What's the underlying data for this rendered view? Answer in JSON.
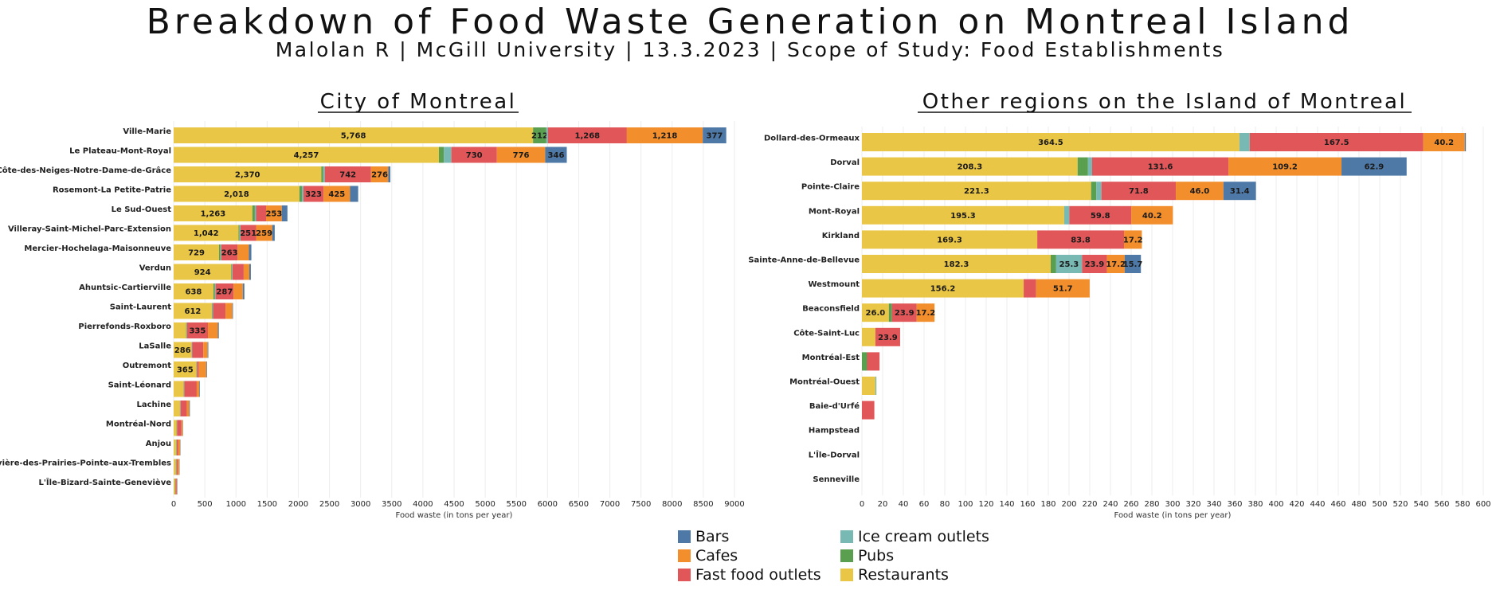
{
  "title": "Breakdown of Food Waste Generation on Montreal Island",
  "subtitle": "Malolan R | McGill University | 13.3.2023 | Scope of Study: Food Establishments",
  "colors": {
    "Restaurants": "#EAC646",
    "Pubs": "#5A9E4F",
    "Ice cream outlets": "#79B9B3",
    "Fast food outlets": "#E15759",
    "Cafes": "#F28E2B",
    "Bars": "#4E79A7"
  },
  "legend": {
    "items": [
      {
        "label": "Bars",
        "color": "#4E79A7"
      },
      {
        "label": "Cafes",
        "color": "#F28E2B"
      },
      {
        "label": "Fast food outlets",
        "color": "#E15759"
      },
      {
        "label": "Ice cream outlets",
        "color": "#79B9B3"
      },
      {
        "label": "Pubs",
        "color": "#5A9E4F"
      },
      {
        "label": "Restaurants",
        "color": "#EAC646"
      }
    ]
  },
  "chart_data": [
    {
      "type": "bar",
      "orientation": "horizontal",
      "stacked": true,
      "title": "City of Montreal",
      "xlabel": "Food waste (in tons per year)",
      "xlim": [
        0,
        9000
      ],
      "xticks": [
        0,
        500,
        1000,
        1500,
        2000,
        2500,
        3000,
        3500,
        4000,
        4500,
        5000,
        5500,
        6000,
        6500,
        7000,
        7500,
        8000,
        8500,
        9000
      ],
      "grid": true,
      "categories": [
        "Ville-Marie",
        "Le Plateau-Mont-Royal",
        "Côte-des-Neiges-Notre-Dame-de-Grâce",
        "Rosemont-La Petite-Patrie",
        "Le Sud-Ouest",
        "Villeray-Saint-Michel-Parc-Extension",
        "Mercier-Hochelaga-Maisonneuve",
        "Verdun",
        "Ahuntsic-Cartierville",
        "Saint-Laurent",
        "Pierrefonds-Roxboro",
        "LaSalle",
        "Outremont",
        "Saint-Léonard",
        "Lachine",
        "Montréal-Nord",
        "Anjou",
        "Rivière-des-Prairies-Pointe-aux-Trembles",
        "L'Île-Bizard-Sainte-Geneviève"
      ],
      "series": [
        {
          "name": "Restaurants",
          "values": [
            5768,
            4257,
            2370,
            2018,
            1263,
            1042,
            729,
            924,
            638,
            612,
            200,
            286,
            365,
            160,
            100,
            45,
            40,
            35,
            20
          ]
        },
        {
          "name": "Pubs",
          "values": [
            212,
            80,
            30,
            40,
            40,
            15,
            20,
            10,
            20,
            10,
            10,
            5,
            5,
            5,
            5,
            5,
            5,
            5,
            5
          ]
        },
        {
          "name": "Ice cream outlets",
          "values": [
            25,
            120,
            25,
            25,
            20,
            15,
            15,
            10,
            15,
            10,
            5,
            5,
            5,
            5,
            5,
            5,
            5,
            5,
            5
          ]
        },
        {
          "name": "Fast food outlets",
          "values": [
            1268,
            730,
            742,
            323,
            160,
            251,
            263,
            180,
            287,
            200,
            335,
            180,
            30,
            200,
            100,
            70,
            25,
            20,
            15
          ]
        },
        {
          "name": "Cafes",
          "values": [
            1218,
            776,
            276,
            425,
            253,
            259,
            180,
            90,
            150,
            110,
            160,
            70,
            120,
            40,
            40,
            20,
            30,
            25,
            10
          ]
        },
        {
          "name": "Bars",
          "values": [
            377,
            346,
            35,
            130,
            90,
            40,
            40,
            25,
            25,
            10,
            15,
            10,
            10,
            10,
            10,
            5,
            5,
            5,
            5
          ]
        }
      ],
      "data_labels": [
        [
          "5,768",
          "212",
          "",
          "1,268",
          "1,218",
          "377"
        ],
        [
          "4,257",
          "",
          "",
          "730",
          "776",
          "346"
        ],
        [
          "2,370",
          "",
          "",
          "742",
          "276",
          ""
        ],
        [
          "2,018",
          "",
          "",
          "323",
          "425",
          ""
        ],
        [
          "1,263",
          "",
          "",
          "",
          "253",
          ""
        ],
        [
          "1,042",
          "",
          "",
          "251",
          "259",
          ""
        ],
        [
          "729",
          "",
          "",
          "263",
          "",
          ""
        ],
        [
          "924",
          "",
          "",
          "",
          "",
          ""
        ],
        [
          "638",
          "",
          "",
          "287",
          "",
          ""
        ],
        [
          "612",
          "",
          "",
          "",
          "",
          ""
        ],
        [
          "",
          "",
          "",
          "335",
          "",
          ""
        ],
        [
          "286",
          "",
          "",
          "",
          "",
          ""
        ],
        [
          "365",
          "",
          "",
          "",
          "",
          ""
        ],
        [
          "",
          "",
          "",
          "",
          "",
          ""
        ],
        [
          "",
          "",
          "",
          "",
          "",
          ""
        ],
        [
          "",
          "",
          "",
          "",
          "",
          ""
        ],
        [
          "",
          "",
          "",
          "",
          "",
          ""
        ],
        [
          "",
          "",
          "",
          "",
          "",
          ""
        ],
        [
          "",
          "",
          "",
          "",
          "",
          ""
        ]
      ]
    },
    {
      "type": "bar",
      "orientation": "horizontal",
      "stacked": true,
      "title": "Other regions on the Island of Montreal",
      "xlabel": "Food waste (in tons per year)",
      "xlim": [
        0,
        600
      ],
      "xticks": [
        0,
        20,
        40,
        60,
        80,
        100,
        120,
        140,
        160,
        180,
        200,
        220,
        240,
        260,
        280,
        300,
        320,
        340,
        360,
        380,
        400,
        420,
        440,
        460,
        480,
        500,
        520,
        540,
        560,
        580,
        600
      ],
      "grid": true,
      "categories": [
        "Dollard-des-Ormeaux",
        "Dorval",
        "Pointe-Claire",
        "Mont-Royal",
        "Kirkland",
        "Sainte-Anne-de-Bellevue",
        "Westmount",
        "Beaconsfield",
        "Côte-Saint-Luc",
        "Montréal-Est",
        "Montréal-Ouest",
        "Baie-d'Urfé",
        "Hampstead",
        "L'Île-Dorval",
        "Senneville"
      ],
      "series": [
        {
          "name": "Restaurants",
          "values": [
            364.5,
            208.3,
            221.3,
            195.3,
            169.3,
            182.3,
            156.2,
            26.0,
            13,
            0,
            13,
            0,
            0,
            0,
            0
          ]
        },
        {
          "name": "Pubs",
          "values": [
            0,
            10,
            5,
            0,
            0,
            5,
            0,
            3,
            0,
            5,
            0,
            0,
            0,
            0,
            0
          ]
        },
        {
          "name": "Ice cream outlets",
          "values": [
            10,
            4,
            5,
            5,
            0,
            25.3,
            0,
            0,
            0,
            0,
            1,
            0,
            0,
            0,
            0
          ]
        },
        {
          "name": "Fast food outlets",
          "values": [
            167.5,
            131.6,
            71.8,
            59.8,
            83.8,
            23.9,
            12,
            23.9,
            23.9,
            12,
            0,
            12,
            0,
            0,
            0
          ]
        },
        {
          "name": "Cafes",
          "values": [
            40.2,
            109.2,
            46.0,
            40.2,
            17.2,
            17.2,
            51.7,
            17.2,
            0,
            0,
            0,
            0,
            0,
            0,
            0
          ]
        },
        {
          "name": "Bars",
          "values": [
            1,
            62.9,
            31.4,
            0,
            0,
            15.7,
            0,
            0,
            0,
            0,
            0,
            0,
            0,
            0,
            0
          ]
        }
      ],
      "data_labels": [
        [
          "364.5",
          "",
          "",
          "167.5",
          "40.2",
          ""
        ],
        [
          "208.3",
          "",
          "",
          "131.6",
          "109.2",
          "62.9"
        ],
        [
          "221.3",
          "",
          "",
          "71.8",
          "46.0",
          "31.4"
        ],
        [
          "195.3",
          "",
          "",
          "59.8",
          "40.2",
          ""
        ],
        [
          "169.3",
          "",
          "",
          "83.8",
          "17.2",
          ""
        ],
        [
          "182.3",
          "",
          "25.3",
          "23.9",
          "17.2",
          "15.7"
        ],
        [
          "156.2",
          "",
          "",
          "",
          "51.7",
          ""
        ],
        [
          "26.0",
          "",
          "",
          "23.9",
          "17.2",
          ""
        ],
        [
          "",
          "",
          "",
          "23.9",
          "",
          ""
        ],
        [
          "",
          "",
          "",
          "",
          "",
          ""
        ],
        [
          "",
          "",
          "",
          "",
          "",
          ""
        ],
        [
          "",
          "",
          "",
          "",
          "",
          ""
        ],
        [
          "",
          "",
          "",
          "",
          "",
          ""
        ],
        [
          "",
          "",
          "",
          "",
          "",
          ""
        ],
        [
          "",
          "",
          "",
          "",
          "",
          ""
        ]
      ]
    }
  ]
}
